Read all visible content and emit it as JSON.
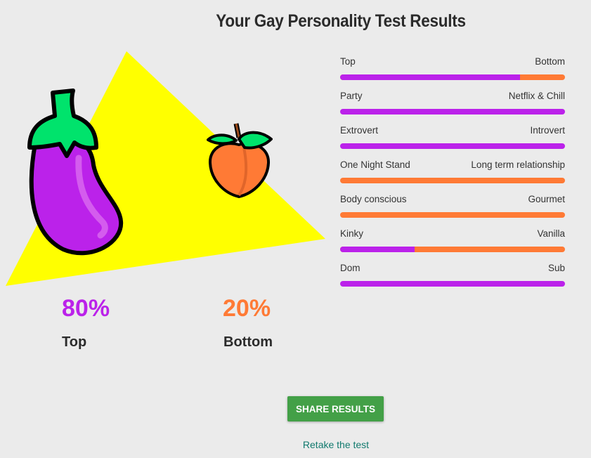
{
  "title": "Your Gay Personality Test Results",
  "colors": {
    "purple": "#bb22ea",
    "orange": "#ff7a35",
    "yellow": "#ffff00",
    "button": "#43a047",
    "link": "#127a6e"
  },
  "summary": {
    "left": {
      "percent": "80%",
      "label": "Top",
      "icon": "eggplant-icon"
    },
    "right": {
      "percent": "20%",
      "label": "Bottom",
      "icon": "peach-icon"
    }
  },
  "traits": [
    {
      "left": "Top",
      "right": "Bottom",
      "left_percent": 80
    },
    {
      "left": "Party",
      "right": "Netflix & Chill",
      "left_percent": 100
    },
    {
      "left": "Extrovert",
      "right": "Introvert",
      "left_percent": 100
    },
    {
      "left": "One Night Stand",
      "right": "Long term relationship",
      "left_percent": 0
    },
    {
      "left": "Body conscious",
      "right": "Gourmet",
      "left_percent": 0
    },
    {
      "left": "Kinky",
      "right": "Vanilla",
      "left_percent": 33
    },
    {
      "left": "Dom",
      "right": "Sub",
      "left_percent": 100
    }
  ],
  "share_label": "SHARE RESULTS",
  "retake_label": "Retake the test"
}
